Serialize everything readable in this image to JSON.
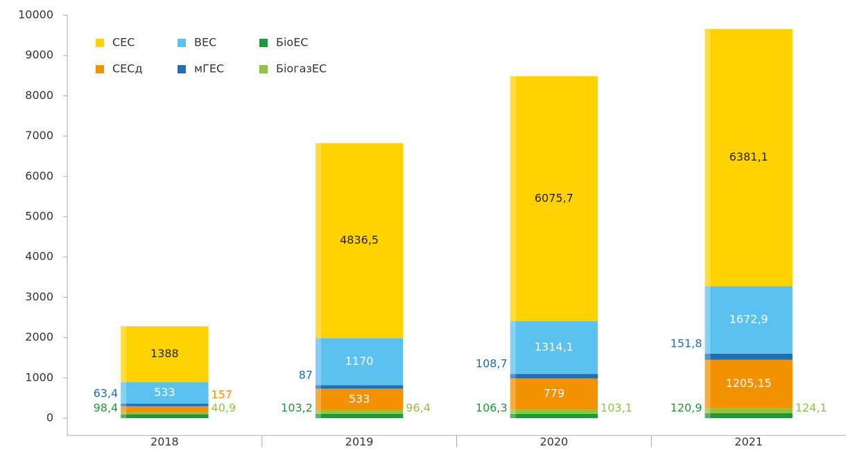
{
  "chart_data": {
    "type": "stacked_bar",
    "categories": [
      "2018",
      "2019",
      "2020",
      "2021"
    ],
    "series": [
      {
        "name": "БіоЕС",
        "color": "#1a9a3a",
        "values": [
          98.4,
          103.2,
          106.3,
          120.9
        ],
        "value_labels": [
          "98,4",
          "103,2",
          "106,3",
          "120,9"
        ]
      },
      {
        "name": "БіогазЕС",
        "color": "#8cc63f",
        "values": [
          40.9,
          96.4,
          103.1,
          124.1
        ],
        "value_labels": [
          "40,9",
          "96,4",
          "103,1",
          "124,1"
        ]
      },
      {
        "name": "СЕСд",
        "color": "#f39200",
        "values": [
          157,
          533,
          779,
          1205.15
        ],
        "value_labels": [
          "157",
          "533",
          "779",
          "1205,15"
        ]
      },
      {
        "name": "мГЕС",
        "color": "#1f6fb5",
        "values": [
          63.4,
          87,
          108.7,
          151.8
        ],
        "value_labels": [
          "63,4",
          "87",
          "108,7",
          "151,8"
        ]
      },
      {
        "name": "ВЕС",
        "color": "#5bc2ef",
        "values": [
          533,
          1170,
          1314.1,
          1672.9
        ],
        "value_labels": [
          "533",
          "1170",
          "1314,1",
          "1672,9"
        ]
      },
      {
        "name": "СЕС",
        "color": "#ffd200",
        "values": [
          1388,
          4836.5,
          6075.7,
          6381.1
        ],
        "value_labels": [
          "1388",
          "4836,5",
          "6075,7",
          "6381,1"
        ]
      }
    ],
    "legend_order": [
      5,
      4,
      0,
      2,
      3,
      1
    ],
    "ylim": [
      0,
      10000
    ],
    "yticks": [
      0,
      1000,
      2000,
      3000,
      4000,
      5000,
      6000,
      7000,
      8000,
      9000,
      10000
    ],
    "legend": "upper-left"
  }
}
